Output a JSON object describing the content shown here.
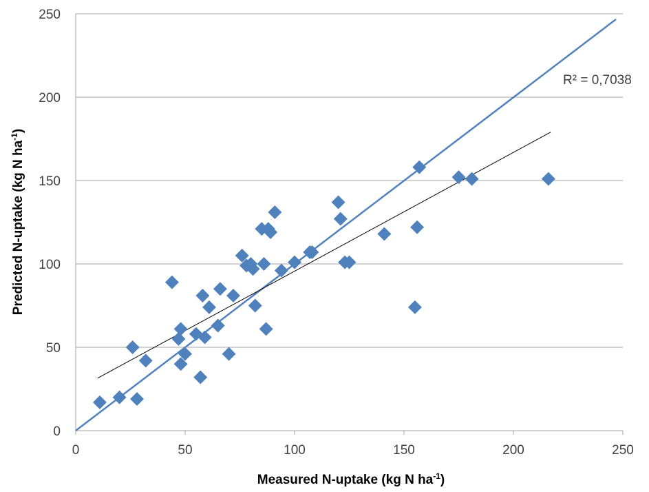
{
  "chart_data": {
    "type": "scatter",
    "xlabel": "Measured N-uptake (kg N ha",
    "xlabel_sup": "-1",
    "xlabel_end": ")",
    "ylabel": "Predicted N-uptake (kg N ha",
    "ylabel_sup": "-1",
    "ylabel_end": ")",
    "xlim": [
      0,
      250
    ],
    "ylim": [
      0,
      250
    ],
    "xticks": [
      "0",
      "50",
      "100",
      "150",
      "200",
      "250"
    ],
    "yticks": [
      "0",
      "50",
      "100",
      "150",
      "200",
      "250"
    ],
    "grid": "horizontal",
    "legend": "none",
    "annotation": "R² = 0,7038",
    "colors": {
      "points": "#4f81bd",
      "one_to_one_line": "#4f81bd",
      "trend_line": "#000000",
      "grid": "#a6a6a6"
    },
    "one_to_one_line": {
      "x": [
        0,
        250
      ],
      "y": [
        0,
        250
      ]
    },
    "trend_line": {
      "x": [
        10,
        217
      ],
      "y": [
        31.5,
        179
      ]
    },
    "points": [
      [
        11,
        17
      ],
      [
        20,
        20
      ],
      [
        28,
        19
      ],
      [
        26,
        50
      ],
      [
        32,
        42
      ],
      [
        44,
        89
      ],
      [
        47,
        55
      ],
      [
        48,
        61
      ],
      [
        48,
        40
      ],
      [
        50,
        46
      ],
      [
        55,
        58
      ],
      [
        57,
        32
      ],
      [
        58,
        81
      ],
      [
        59,
        56
      ],
      [
        61,
        74
      ],
      [
        65,
        63
      ],
      [
        66,
        85
      ],
      [
        70,
        46
      ],
      [
        72,
        81
      ],
      [
        76,
        105
      ],
      [
        78,
        99
      ],
      [
        80,
        100
      ],
      [
        81,
        97
      ],
      [
        82,
        75
      ],
      [
        85,
        121
      ],
      [
        86,
        100
      ],
      [
        87,
        61
      ],
      [
        88,
        121
      ],
      [
        89,
        119
      ],
      [
        91,
        131
      ],
      [
        94,
        96
      ],
      [
        100,
        101
      ],
      [
        107,
        107
      ],
      [
        108,
        107
      ],
      [
        120,
        137
      ],
      [
        121,
        127
      ],
      [
        123,
        101
      ],
      [
        125,
        101
      ],
      [
        141,
        118
      ],
      [
        155,
        74
      ],
      [
        156,
        122
      ],
      [
        157,
        158
      ],
      [
        175,
        152
      ],
      [
        181,
        151
      ],
      [
        216,
        151
      ]
    ]
  }
}
